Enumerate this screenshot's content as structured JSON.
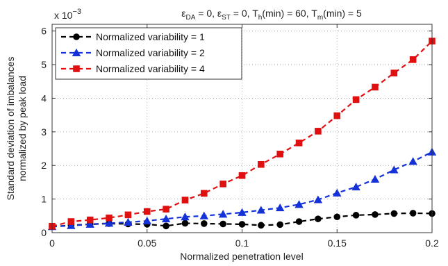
{
  "chart_data": {
    "type": "line",
    "title": {
      "parts": [
        {
          "t": "ε",
          "sub": false
        },
        {
          "t": "DA",
          "sub": true
        },
        {
          "t": " = 0, ε",
          "sub": false
        },
        {
          "t": "ST",
          "sub": true
        },
        {
          "t": " = 0, T",
          "sub": false
        },
        {
          "t": "h",
          "sub": true
        },
        {
          "t": "(min) = 60, T",
          "sub": false
        },
        {
          "t": "m",
          "sub": true
        },
        {
          "t": "(min) = 5",
          "sub": false
        }
      ]
    },
    "xlabel": "Normalized penetration level",
    "ylabel_line1": "Standard deviation of imbalances",
    "ylabel_line2": "normalized by peak load",
    "y_multiplier_base": "x 10",
    "y_multiplier_exp": "−3",
    "xlim": [
      0,
      0.2
    ],
    "ylim": [
      0,
      6.2
    ],
    "xticks": [
      0,
      0.05,
      0.1,
      0.15,
      0.2
    ],
    "xtick_labels": [
      "0",
      "0.05",
      "0.1",
      "0.15",
      "0.2"
    ],
    "yticks": [
      0,
      1,
      2,
      3,
      4,
      5,
      6
    ],
    "ytick_labels": [
      "0",
      "1",
      "2",
      "3",
      "4",
      "5",
      "6"
    ],
    "grid": true,
    "legend_position": "top-left",
    "x": [
      0,
      0.01,
      0.02,
      0.03,
      0.04,
      0.05,
      0.06,
      0.07,
      0.08,
      0.09,
      0.1,
      0.11,
      0.12,
      0.13,
      0.14,
      0.15,
      0.16,
      0.17,
      0.18,
      0.19,
      0.2
    ],
    "series": [
      {
        "name": "Normalized variability = 1",
        "color": "#000000",
        "marker": "circle",
        "values": [
          0.18,
          0.22,
          0.25,
          0.27,
          0.26,
          0.25,
          0.2,
          0.28,
          0.27,
          0.26,
          0.25,
          0.22,
          0.24,
          0.33,
          0.41,
          0.47,
          0.52,
          0.54,
          0.57,
          0.58,
          0.57
        ]
      },
      {
        "name": "Normalized variability = 2",
        "color": "#1432d8",
        "marker": "triangle",
        "values": [
          0.18,
          0.21,
          0.25,
          0.28,
          0.31,
          0.35,
          0.41,
          0.47,
          0.5,
          0.55,
          0.6,
          0.67,
          0.74,
          0.84,
          0.98,
          1.18,
          1.36,
          1.59,
          1.87,
          2.12,
          2.4
        ]
      },
      {
        "name": "Normalized variability = 4",
        "color": "#e01010",
        "marker": "square",
        "values": [
          0.19,
          0.33,
          0.38,
          0.44,
          0.53,
          0.63,
          0.7,
          0.97,
          1.17,
          1.45,
          1.7,
          2.03,
          2.34,
          2.67,
          3.02,
          3.48,
          3.96,
          4.33,
          4.75,
          5.15,
          5.7
        ]
      }
    ]
  }
}
